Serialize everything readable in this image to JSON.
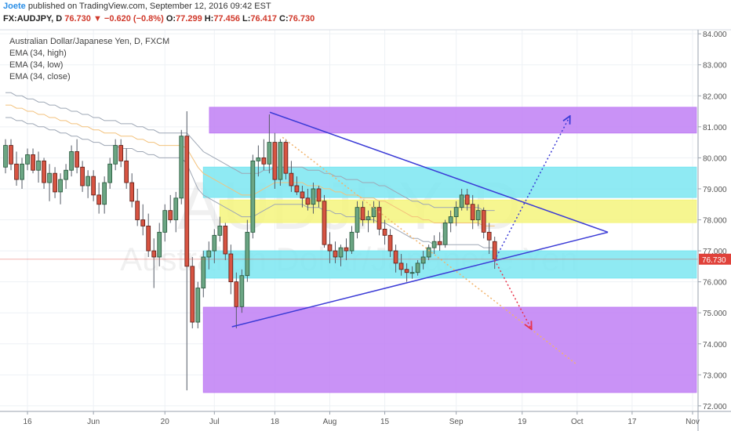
{
  "header": {
    "author": "Joete",
    "published": "published on TradingView.com, September 12, 2016 09:42 EST",
    "symbol": "FX:AUDJPY, D",
    "last": "76.730",
    "change": "▼ −0.620 (−0.8%)",
    "ohlc": [
      {
        "label": "O:",
        "value": "77.299"
      },
      {
        "label": "H:",
        "value": "77.456"
      },
      {
        "label": "L:",
        "value": "76.417"
      },
      {
        "label": "C:",
        "value": "76.730"
      }
    ]
  },
  "chart_data": {
    "type": "candlestick",
    "title": "Australian Dollar/Japanese Yen, D, FXCM",
    "watermark": "AUDJPY, D",
    "watermark_subtitle": "Australian Dollar/Japanese Yen",
    "up_color": "#6ba583",
    "down_color": "#d75442",
    "open": [
      79.7,
      80.4,
      79.8,
      79.3,
      79.8,
      80.1,
      79.6,
      79.9,
      79.2,
      79.5,
      78.9,
      79.3,
      79.6,
      80.2,
      79.7,
      79.1,
      79.4,
      78.8,
      78.5,
      79.2,
      79.8,
      80.4,
      79.9,
      79.2,
      78.6,
      78.0,
      77.8,
      77.0,
      76.8,
      77.6,
      78.3,
      78.0,
      78.7,
      80.7,
      76.5,
      74.7,
      75.8,
      76.8,
      77.0,
      77.5,
      77.8,
      76.9,
      76.0,
      75.2,
      76.2,
      77.6,
      79.9,
      80.0,
      79.8,
      80.5,
      79.3,
      80.5,
      79.5,
      79.1,
      78.9,
      78.7,
      78.5,
      79.0,
      78.6,
      77.2,
      77.0,
      76.8,
      77.1,
      77.0,
      77.6,
      78.4,
      78.0,
      78.1,
      78.4,
      77.7,
      77.5,
      77.0,
      76.6,
      76.4,
      76.3,
      76.3,
      76.6,
      76.8,
      77.1,
      77.3,
      77.2,
      77.9,
      78.1,
      78.4,
      78.8,
      78.5,
      78.0,
      78.3,
      77.6,
      77.299
    ],
    "high": [
      80.6,
      80.6,
      80.2,
      80.0,
      80.3,
      80.3,
      80.2,
      80.0,
      79.8,
      79.7,
      79.5,
      79.8,
      80.4,
      80.6,
      79.9,
      79.6,
      79.6,
      79.2,
      79.4,
      80.0,
      80.6,
      80.6,
      80.3,
      79.5,
      79.0,
      78.5,
      78.2,
      77.4,
      77.9,
      78.5,
      78.8,
      78.9,
      80.9,
      81.5,
      76.8,
      76.0,
      77.0,
      77.3,
      77.7,
      78.1,
      77.9,
      77.2,
      76.3,
      76.4,
      78.0,
      80.1,
      80.4,
      80.6,
      81.4,
      80.8,
      80.6,
      80.6,
      79.9,
      79.4,
      79.1,
      79.0,
      79.2,
      79.1,
      78.8,
      77.6,
      77.3,
      77.2,
      77.4,
      77.8,
      78.6,
      78.6,
      78.3,
      78.6,
      78.6,
      78.0,
      77.7,
      77.2,
      76.9,
      76.6,
      76.5,
      76.7,
      77.0,
      77.2,
      77.5,
      77.6,
      78.0,
      78.3,
      78.6,
      79.0,
      79.0,
      78.8,
      78.5,
      78.4,
      77.9,
      77.456
    ],
    "low": [
      79.5,
      79.6,
      79.1,
      79.0,
      79.6,
      79.5,
      79.2,
      79.0,
      78.6,
      78.7,
      78.5,
      79.0,
      79.4,
      79.5,
      78.9,
      78.7,
      78.6,
      78.2,
      78.2,
      79.0,
      79.6,
      79.7,
      79.0,
      78.4,
      77.8,
      77.5,
      76.8,
      75.8,
      76.5,
      77.3,
      77.9,
      77.6,
      78.5,
      72.5,
      74.5,
      74.5,
      75.5,
      76.4,
      76.6,
      77.3,
      76.7,
      75.6,
      74.5,
      75.0,
      76.0,
      77.4,
      79.4,
      79.6,
      79.5,
      79.0,
      79.1,
      79.3,
      78.9,
      78.8,
      78.4,
      78.3,
      78.2,
      78.4,
      77.1,
      76.6,
      76.6,
      76.5,
      76.7,
      76.9,
      77.4,
      77.8,
      77.6,
      77.9,
      77.5,
      77.2,
      76.8,
      76.3,
      76.2,
      76.0,
      76.1,
      76.2,
      76.4,
      76.7,
      76.9,
      77.0,
      77.1,
      77.6,
      77.8,
      78.3,
      78.3,
      77.7,
      77.8,
      77.4,
      76.9,
      76.417
    ],
    "close": [
      80.4,
      79.8,
      79.3,
      79.8,
      80.1,
      79.6,
      79.9,
      79.2,
      79.5,
      78.9,
      79.3,
      79.6,
      80.2,
      79.7,
      79.1,
      79.4,
      78.8,
      78.5,
      79.2,
      79.8,
      80.4,
      79.9,
      79.2,
      78.6,
      78.0,
      77.8,
      77.0,
      76.8,
      77.6,
      78.3,
      78.0,
      78.7,
      80.7,
      76.5,
      74.7,
      75.8,
      76.8,
      77.0,
      77.5,
      77.8,
      76.9,
      76.0,
      75.2,
      76.2,
      77.6,
      79.9,
      80.0,
      79.8,
      80.5,
      79.3,
      80.5,
      79.5,
      79.1,
      78.9,
      78.7,
      78.5,
      79.0,
      78.6,
      77.2,
      77.0,
      76.8,
      77.1,
      77.0,
      77.6,
      78.4,
      78.0,
      78.1,
      78.4,
      77.7,
      77.5,
      77.0,
      76.6,
      76.4,
      76.3,
      76.3,
      76.6,
      76.8,
      77.1,
      77.3,
      77.2,
      77.9,
      78.1,
      78.4,
      78.8,
      78.5,
      78.0,
      78.3,
      77.6,
      77.35,
      76.73
    ],
    "series": [
      {
        "name": "EMA (34, high)",
        "color": "#9ea7b5",
        "values": [
          82.1,
          82.1,
          82.0,
          82.0,
          81.9,
          81.9,
          81.8,
          81.8,
          81.7,
          81.7,
          81.6,
          81.6,
          81.5,
          81.5,
          81.4,
          81.4,
          81.3,
          81.3,
          81.2,
          81.2,
          81.2,
          81.1,
          81.1,
          81.1,
          81.0,
          81.0,
          80.9,
          80.9,
          80.8,
          80.8,
          80.8,
          80.8,
          80.8,
          80.8,
          80.6,
          80.4,
          80.2,
          80.1,
          80.0,
          79.9,
          79.8,
          79.7,
          79.6,
          79.5,
          79.5,
          79.5,
          79.5,
          79.6,
          79.6,
          79.7,
          79.7,
          79.7,
          79.7,
          79.7,
          79.7,
          79.6,
          79.6,
          79.6,
          79.5,
          79.5,
          79.4,
          79.4,
          79.3,
          79.3,
          79.3,
          79.2,
          79.2,
          79.2,
          79.1,
          79.1,
          79.0,
          78.9,
          78.8,
          78.7,
          78.6,
          78.6,
          78.5,
          78.5,
          78.4,
          78.4,
          78.4,
          78.4,
          78.4,
          78.4,
          78.4,
          78.4,
          78.4,
          78.3,
          78.3,
          78.3
        ]
      },
      {
        "name": "EMA (34, low)",
        "color": "#9ea7b5",
        "values": [
          81.3,
          81.3,
          81.2,
          81.2,
          81.1,
          81.1,
          81.0,
          81.0,
          80.9,
          80.9,
          80.8,
          80.8,
          80.7,
          80.7,
          80.6,
          80.6,
          80.5,
          80.5,
          80.4,
          80.4,
          80.4,
          80.3,
          80.3,
          80.3,
          80.2,
          80.2,
          80.1,
          80.1,
          80.0,
          80.0,
          80.0,
          80.0,
          80.0,
          79.8,
          79.4,
          79.0,
          78.8,
          78.7,
          78.6,
          78.5,
          78.4,
          78.3,
          78.2,
          78.1,
          78.1,
          78.1,
          78.2,
          78.3,
          78.4,
          78.5,
          78.5,
          78.5,
          78.5,
          78.5,
          78.5,
          78.4,
          78.4,
          78.4,
          78.3,
          78.3,
          78.2,
          78.2,
          78.1,
          78.1,
          78.1,
          78.0,
          78.0,
          78.0,
          77.9,
          77.9,
          77.8,
          77.7,
          77.6,
          77.5,
          77.4,
          77.4,
          77.3,
          77.3,
          77.2,
          77.2,
          77.2,
          77.2,
          77.2,
          77.2,
          77.2,
          77.2,
          77.2,
          77.1,
          77.1,
          77.1
        ]
      },
      {
        "name": "EMA (34, close)",
        "color": "#f3c27c",
        "values": [
          81.7,
          81.7,
          81.6,
          81.6,
          81.5,
          81.5,
          81.4,
          81.4,
          81.3,
          81.3,
          81.2,
          81.2,
          81.1,
          81.1,
          81.0,
          81.0,
          80.9,
          80.9,
          80.8,
          80.8,
          80.8,
          80.7,
          80.7,
          80.7,
          80.6,
          80.6,
          80.5,
          80.5,
          80.4,
          80.4,
          80.4,
          80.4,
          80.4,
          80.3,
          80.0,
          79.7,
          79.5,
          79.4,
          79.3,
          79.2,
          79.1,
          79.0,
          78.9,
          78.8,
          78.8,
          78.8,
          78.9,
          79.0,
          79.1,
          79.2,
          79.2,
          79.2,
          79.2,
          79.2,
          79.2,
          79.1,
          79.1,
          79.1,
          79.0,
          79.0,
          78.9,
          78.9,
          78.8,
          78.8,
          78.8,
          78.7,
          78.7,
          78.7,
          78.6,
          78.6,
          78.5,
          78.4,
          78.3,
          78.2,
          78.1,
          78.1,
          78.0,
          78.0,
          77.9,
          77.9,
          77.9,
          77.9,
          77.9,
          77.9,
          77.9,
          77.9,
          77.9,
          77.8,
          77.8,
          77.8
        ]
      }
    ],
    "zones": [
      {
        "x": [
          37.1,
          125.7
        ],
        "y": [
          80.8,
          81.63
        ],
        "color": "#c07ff4"
      },
      {
        "x": [
          36.0,
          125.7
        ],
        "y": [
          78.72,
          79.7
        ],
        "color": "#7be6f1"
      },
      {
        "x": [
          39.0,
          125.7
        ],
        "y": [
          77.91,
          78.64
        ],
        "color": "#f4f47c"
      },
      {
        "x": [
          36.0,
          125.7
        ],
        "y": [
          76.12,
          77.0
        ],
        "color": "#7be6f1"
      },
      {
        "x": [
          36.0,
          125.7
        ],
        "y": [
          72.43,
          75.18
        ],
        "color": "#c07ff4"
      }
    ],
    "trendlines": [
      {
        "x": [
          48.1,
          109.6
        ],
        "y": [
          81.47,
          77.6
        ],
        "color": "#3b3bd6",
        "style": "solid"
      },
      {
        "x": [
          41.2,
          109.6
        ],
        "y": [
          74.55,
          77.6
        ],
        "color": "#3b3bd6",
        "style": "solid"
      },
      {
        "x": [
          50.4,
          103.9
        ],
        "y": [
          80.66,
          73.34
        ],
        "color": "#f2b36b",
        "style": "dotted"
      },
      {
        "x": [
          89.0,
          102.7
        ],
        "y": [
          76.7,
          81.35
        ],
        "color": "#3b3bd6",
        "style": "arrow"
      },
      {
        "x": [
          89.0,
          95.7
        ],
        "y": [
          76.7,
          74.47
        ],
        "color": "#e8334a",
        "style": "arrow"
      }
    ],
    "last_color": "#e0413a",
    "xlim": [
      -1,
      126
    ],
    "ylim": [
      71.82,
      84.13
    ],
    "xticks": [
      {
        "value": 4,
        "label": "16"
      },
      {
        "value": 16,
        "label": "Jun"
      },
      {
        "value": 29,
        "label": "20"
      },
      {
        "value": 38,
        "label": "Jul"
      },
      {
        "value": 49,
        "label": "18"
      },
      {
        "value": 59,
        "label": "Aug"
      },
      {
        "value": 69,
        "label": "15"
      },
      {
        "value": 82,
        "label": "Sep"
      },
      {
        "value": 94,
        "label": "19"
      },
      {
        "value": 104,
        "label": "Oct"
      },
      {
        "value": 114,
        "label": "17"
      },
      {
        "value": 125,
        "label": "Nov"
      }
    ],
    "yticks": [
      {
        "value": 72,
        "label": "72.000"
      },
      {
        "value": 73,
        "label": "73.000"
      },
      {
        "value": 74,
        "label": "74.000"
      },
      {
        "value": 75,
        "label": "75.000"
      },
      {
        "value": 76,
        "label": "76.000"
      },
      {
        "value": 77,
        "label": "77.000"
      },
      {
        "value": 78,
        "label": "78.000"
      },
      {
        "value": 79,
        "label": "79.000"
      },
      {
        "value": 80,
        "label": "80.000"
      },
      {
        "value": 81,
        "label": "81.000"
      },
      {
        "value": 82,
        "label": "82.000"
      },
      {
        "value": 83,
        "label": "83.000"
      },
      {
        "value": 84,
        "label": "84.000"
      }
    ],
    "grid": true
  }
}
